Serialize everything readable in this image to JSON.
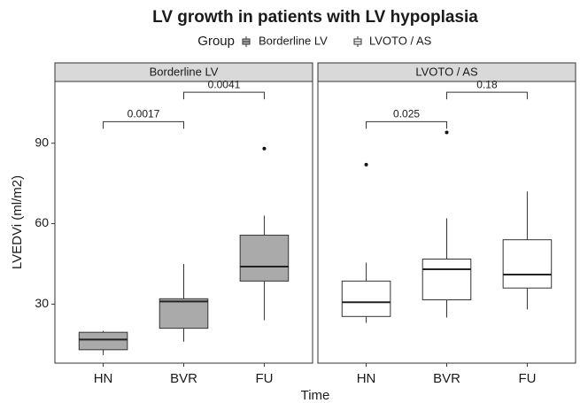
{
  "chart_data": {
    "type": "box",
    "title": "LV growth in patients with LV hypoplasia",
    "legend_title": "Group",
    "x_label": "Time",
    "y_label": "LVEDVi (ml/m2)",
    "categories": [
      "HN",
      "BVR",
      "FU"
    ],
    "ylim": [
      8,
      113
    ],
    "yticks": [
      30,
      60,
      90
    ],
    "grid": false,
    "series": [
      {
        "name": "Borderline LV",
        "color": "#aaaaaa",
        "low": [
          11,
          16,
          24
        ],
        "q1": [
          13,
          21,
          38.6
        ],
        "median": [
          16.8,
          31,
          44
        ],
        "q3": [
          19.5,
          32,
          55.7
        ],
        "high": [
          20,
          45,
          63
        ],
        "outliers": [
          [],
          [],
          [
            88
          ]
        ],
        "comparisons": [
          {
            "label": "0.0017",
            "y": 98
          },
          {
            "label": "0.0041",
            "y": 109
          }
        ]
      },
      {
        "name": "LVOTO / AS",
        "color": "#ffffff",
        "low": [
          23,
          25,
          28
        ],
        "q1": [
          25.4,
          31.6,
          36
        ],
        "median": [
          30.7,
          43,
          41
        ],
        "q3": [
          38.6,
          46.8,
          54
        ],
        "high": [
          45.5,
          62,
          72
        ],
        "outliers": [
          [
            82
          ],
          [
            94
          ],
          []
        ],
        "comparisons": [
          {
            "label": "0.025",
            "y": 98
          },
          {
            "label": "0.18",
            "y": 109
          }
        ]
      }
    ]
  }
}
